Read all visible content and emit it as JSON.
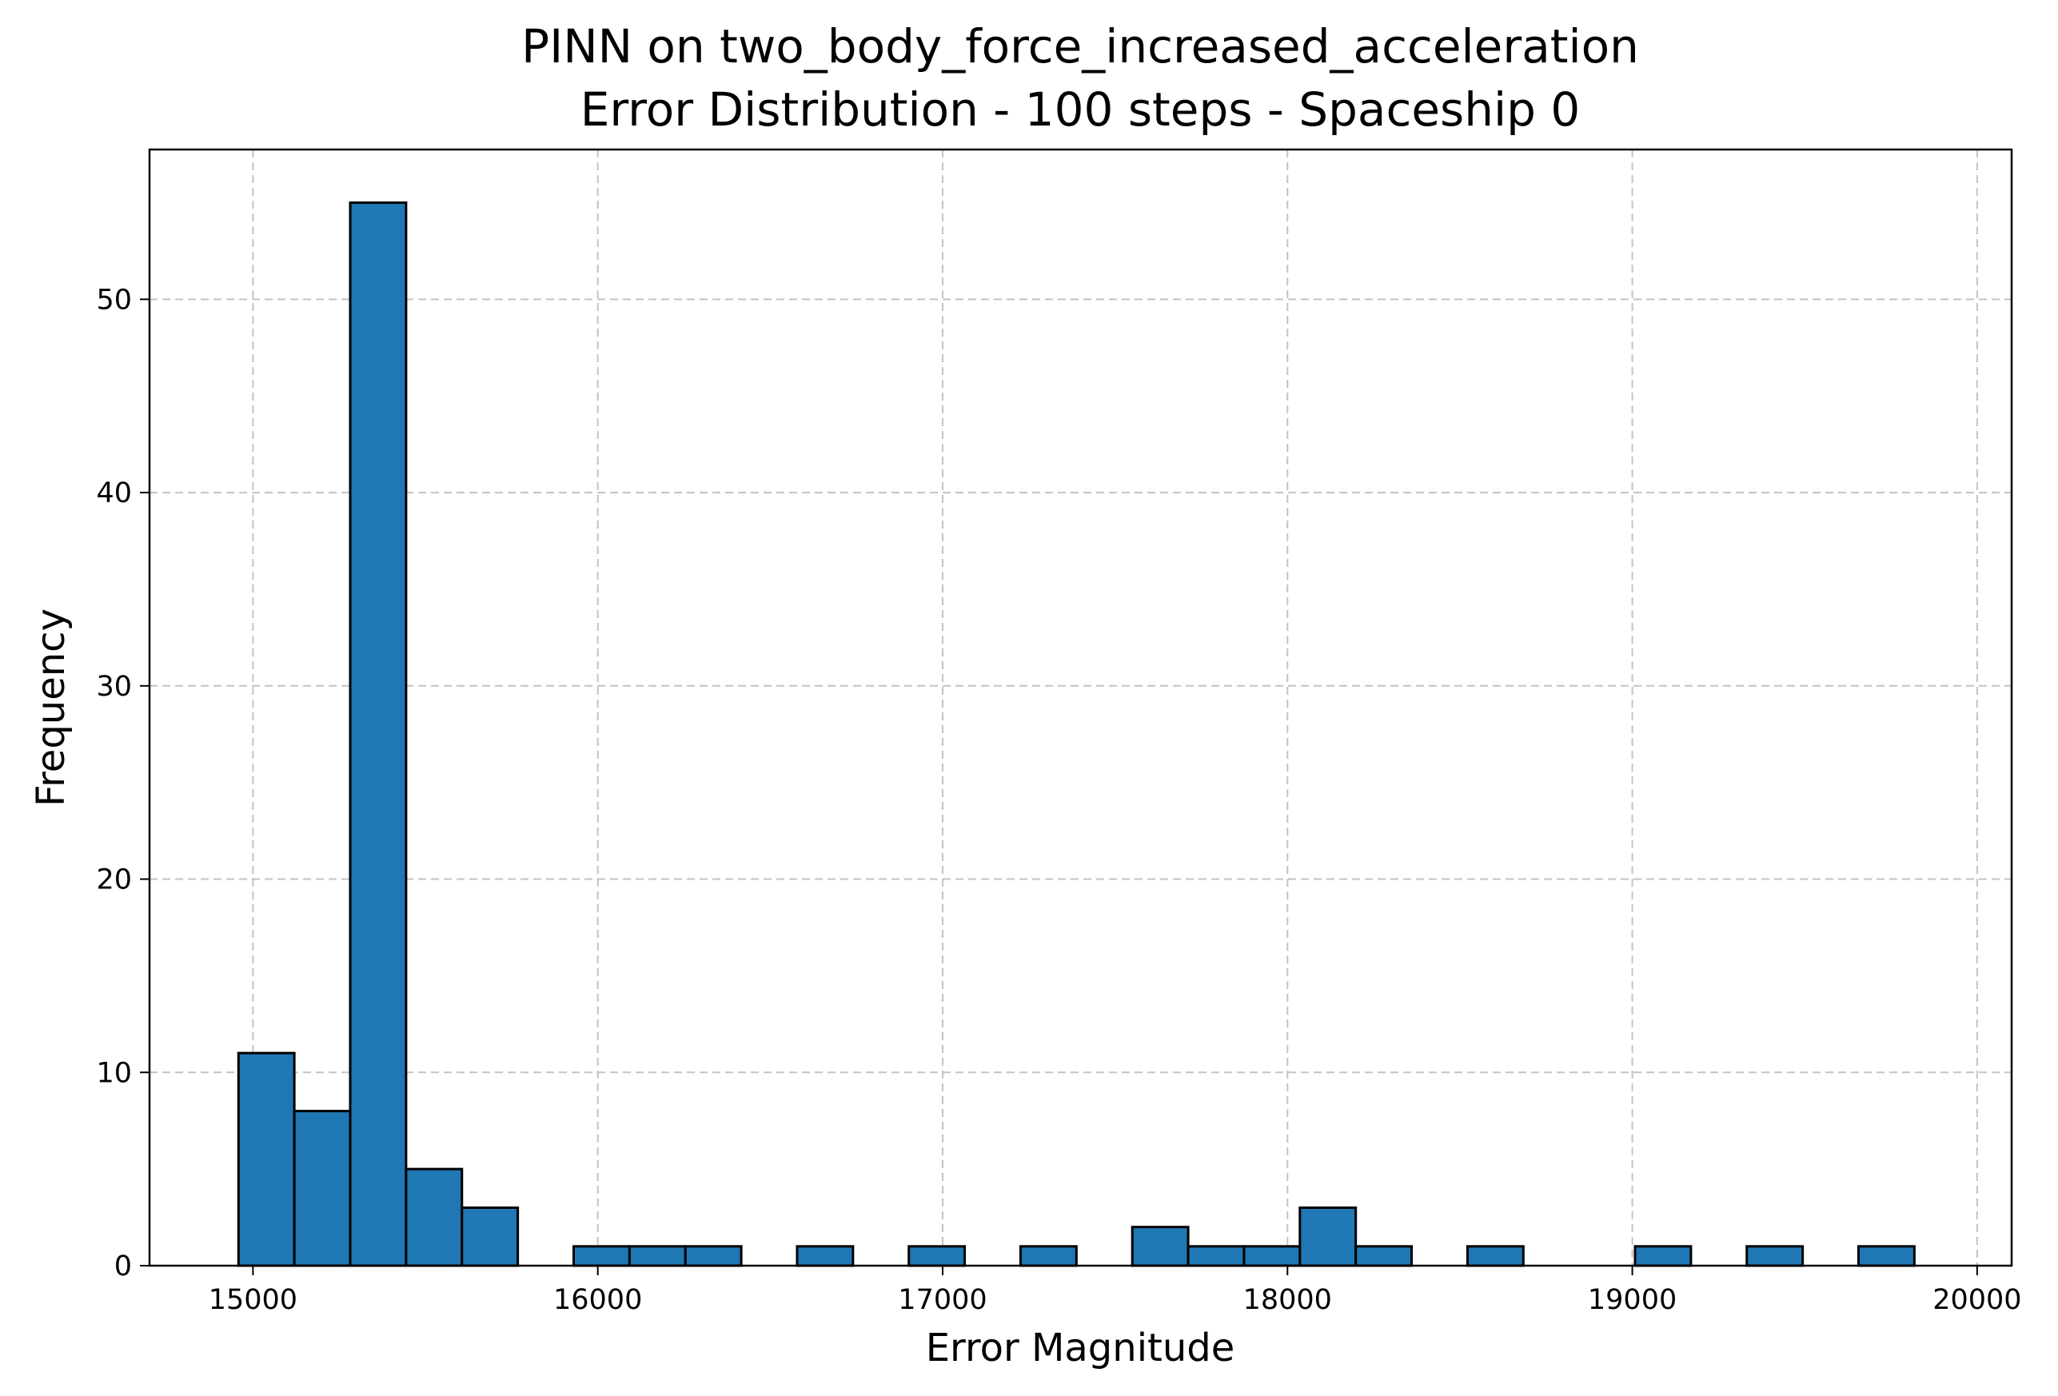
{
  "chart_data": {
    "type": "bar",
    "title": "PINN on two_body_force_increased_acceleration",
    "subtitle": "Error Distribution - 100 steps - Spaceship 0",
    "xlabel": "Error Magnitude",
    "ylabel": "Frequency",
    "xlim": [
      14700,
      20100
    ],
    "ylim": [
      0,
      57.75
    ],
    "xticks": [
      15000,
      16000,
      17000,
      18000,
      19000,
      20000
    ],
    "yticks": [
      0,
      10,
      20,
      30,
      40,
      50
    ],
    "grid": true,
    "bar_color": "#1f77b4",
    "bin_start": 14958,
    "bin_width": 162,
    "values": [
      11,
      8,
      55,
      5,
      3,
      0,
      1,
      1,
      1,
      0,
      1,
      0,
      1,
      0,
      1,
      0,
      2,
      1,
      1,
      3,
      1,
      0,
      1,
      0,
      0,
      1,
      0,
      1,
      0,
      1
    ]
  }
}
